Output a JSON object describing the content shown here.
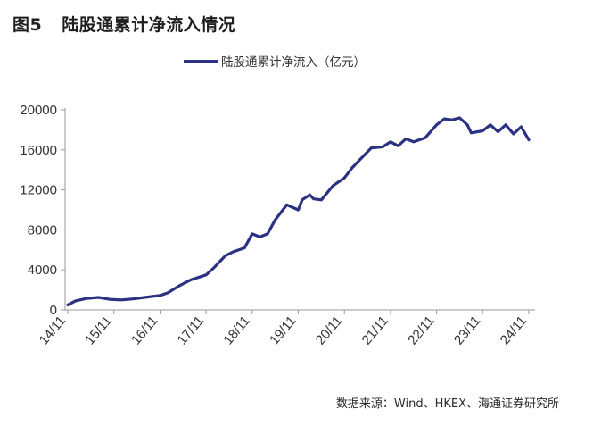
{
  "figure": {
    "number": "图5",
    "title": "陆股通累计净流入情况",
    "source": "数据来源：Wind、HKEX、海通证券研究所"
  },
  "colors": {
    "series": "#2b3282",
    "axis": "#9a9a9a",
    "text": "#333333"
  },
  "chart_data": {
    "type": "line",
    "title": "",
    "xlabel": "",
    "ylabel": "",
    "ylim": [
      0,
      20000
    ],
    "yticks": [
      "0",
      "4000",
      "8000",
      "12000",
      "16000",
      "20000"
    ],
    "xticks": [
      "14/11",
      "15/11",
      "16/11",
      "17/11",
      "18/11",
      "19/11",
      "20/11",
      "21/11",
      "22/11",
      "23/11",
      "24/11"
    ],
    "grid": false,
    "legend_position": "top",
    "series": [
      {
        "name": "陆股通累计净流入（亿元）",
        "x": [
          "2014-11",
          "2015-01",
          "2015-04",
          "2015-07",
          "2015-10",
          "2016-01",
          "2016-04",
          "2016-07",
          "2016-11",
          "2017-01",
          "2017-04",
          "2017-07",
          "2017-11",
          "2018-01",
          "2018-04",
          "2018-06",
          "2018-09",
          "2018-11",
          "2019-01",
          "2019-03",
          "2019-05",
          "2019-08",
          "2019-11",
          "2019-12",
          "2020-02",
          "2020-03",
          "2020-05",
          "2020-08",
          "2020-11",
          "2021-01",
          "2021-03",
          "2021-06",
          "2021-09",
          "2021-11",
          "2022-01",
          "2022-03",
          "2022-05",
          "2022-08",
          "2022-11",
          "2023-01",
          "2023-03",
          "2023-05",
          "2023-07",
          "2023-08",
          "2023-11",
          "2024-01",
          "2024-03",
          "2024-05",
          "2024-07",
          "2024-09",
          "2024-11"
        ],
        "values": [
          500,
          900,
          1150,
          1250,
          1050,
          1000,
          1100,
          1250,
          1450,
          1700,
          2400,
          3000,
          3500,
          4200,
          5400,
          5800,
          6200,
          7600,
          7300,
          7600,
          9000,
          10500,
          10000,
          11000,
          11500,
          11100,
          11000,
          12400,
          13200,
          14200,
          15000,
          16200,
          16300,
          16800,
          16400,
          17100,
          16800,
          17200,
          18500,
          19100,
          19000,
          19200,
          18500,
          17700,
          17900,
          18500,
          17800,
          18500,
          17600,
          18300,
          17000
        ]
      }
    ]
  }
}
